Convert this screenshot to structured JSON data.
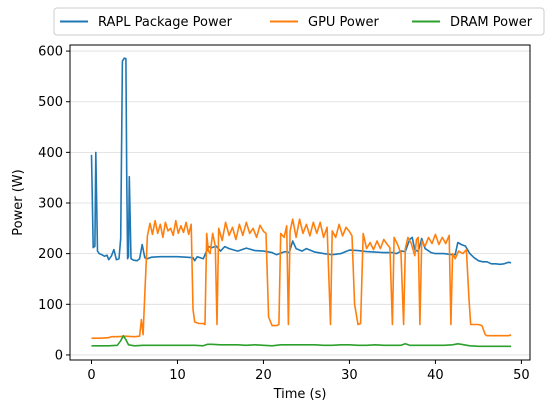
{
  "chart_data": {
    "type": "line",
    "xlabel": "Time (s)",
    "ylabel": "Power (W)",
    "xlim": [
      -2.5,
      51.0
    ],
    "ylim": [
      -10,
      612
    ],
    "xticks": [
      0,
      10,
      20,
      30,
      40,
      50
    ],
    "yticks": [
      0,
      100,
      200,
      300,
      400,
      500,
      600
    ],
    "grid": "horizontal",
    "legend": "top-center",
    "series": [
      {
        "name": "RAPL Package Power",
        "color": "#1f77b4",
        "points": [
          [
            0.0,
            395
          ],
          [
            0.2,
            212
          ],
          [
            0.4,
            215
          ],
          [
            0.5,
            400
          ],
          [
            0.7,
            205
          ],
          [
            0.9,
            200
          ],
          [
            1.2,
            198
          ],
          [
            1.5,
            195
          ],
          [
            1.8,
            197
          ],
          [
            2.0,
            188
          ],
          [
            2.3,
            195
          ],
          [
            2.6,
            208
          ],
          [
            2.9,
            188
          ],
          [
            3.2,
            190
          ],
          [
            3.4,
            230
          ],
          [
            3.6,
            580
          ],
          [
            3.8,
            586
          ],
          [
            4.0,
            585
          ],
          [
            4.1,
            360
          ],
          [
            4.2,
            190
          ],
          [
            4.3,
            195
          ],
          [
            4.4,
            352
          ],
          [
            4.6,
            190
          ],
          [
            4.9,
            187
          ],
          [
            5.3,
            186
          ],
          [
            5.6,
            190
          ],
          [
            5.9,
            218
          ],
          [
            6.2,
            192
          ],
          [
            6.5,
            190
          ],
          [
            6.8,
            192
          ],
          [
            7.0,
            193
          ],
          [
            8.0,
            194
          ],
          [
            9.0,
            194
          ],
          [
            10.0,
            194
          ],
          [
            11.0,
            193
          ],
          [
            11.8,
            192
          ],
          [
            12.0,
            186
          ],
          [
            12.3,
            194
          ],
          [
            13.0,
            190
          ],
          [
            13.6,
            214
          ],
          [
            14.0,
            212
          ],
          [
            14.5,
            215
          ],
          [
            15.0,
            205
          ],
          [
            15.5,
            214
          ],
          [
            16.0,
            210
          ],
          [
            17.0,
            205
          ],
          [
            18.0,
            211
          ],
          [
            19.0,
            206
          ],
          [
            20.0,
            205
          ],
          [
            21.0,
            202
          ],
          [
            21.5,
            198
          ],
          [
            22.0,
            201
          ],
          [
            22.5,
            204
          ],
          [
            23.0,
            202
          ],
          [
            23.4,
            225
          ],
          [
            23.8,
            210
          ],
          [
            24.5,
            205
          ],
          [
            25.0,
            210
          ],
          [
            26.0,
            203
          ],
          [
            27.0,
            200
          ],
          [
            28.0,
            198
          ],
          [
            29.0,
            200
          ],
          [
            30.0,
            207
          ],
          [
            31.0,
            206
          ],
          [
            32.0,
            204
          ],
          [
            33.0,
            203
          ],
          [
            34.0,
            202
          ],
          [
            35.0,
            202
          ],
          [
            35.5,
            200
          ],
          [
            36.0,
            205
          ],
          [
            36.5,
            204
          ],
          [
            37.0,
            228
          ],
          [
            37.3,
            232
          ],
          [
            37.6,
            208
          ],
          [
            38.0,
            204
          ],
          [
            38.4,
            230
          ],
          [
            38.8,
            210
          ],
          [
            39.5,
            202
          ],
          [
            40.0,
            200
          ],
          [
            40.5,
            200
          ],
          [
            41.0,
            200
          ],
          [
            41.5,
            199
          ],
          [
            42.0,
            198
          ],
          [
            42.3,
            198
          ],
          [
            42.6,
            222
          ],
          [
            43.0,
            218
          ],
          [
            43.5,
            215
          ],
          [
            44.0,
            200
          ],
          [
            44.5,
            192
          ],
          [
            45.0,
            186
          ],
          [
            45.5,
            184
          ],
          [
            46.0,
            184
          ],
          [
            46.5,
            180
          ],
          [
            47.0,
            180
          ],
          [
            47.5,
            179
          ],
          [
            48.0,
            180
          ],
          [
            48.5,
            183
          ],
          [
            48.8,
            182
          ]
        ]
      },
      {
        "name": "GPU Power",
        "color": "#ff7f0e",
        "points": [
          [
            0.0,
            33
          ],
          [
            1.0,
            33
          ],
          [
            2.0,
            34
          ],
          [
            2.3,
            36
          ],
          [
            3.0,
            36
          ],
          [
            4.0,
            37
          ],
          [
            5.0,
            36
          ],
          [
            5.6,
            37
          ],
          [
            5.8,
            70
          ],
          [
            6.0,
            40
          ],
          [
            6.2,
            120
          ],
          [
            6.5,
            235
          ],
          [
            6.8,
            260
          ],
          [
            7.1,
            238
          ],
          [
            7.4,
            265
          ],
          [
            7.7,
            240
          ],
          [
            8.0,
            258
          ],
          [
            8.3,
            232
          ],
          [
            8.6,
            262
          ],
          [
            8.9,
            245
          ],
          [
            9.2,
            250
          ],
          [
            9.5,
            236
          ],
          [
            9.8,
            265
          ],
          [
            10.1,
            240
          ],
          [
            10.4,
            255
          ],
          [
            10.7,
            242
          ],
          [
            11.0,
            262
          ],
          [
            11.3,
            238
          ],
          [
            11.6,
            258
          ],
          [
            11.8,
            90
          ],
          [
            12.0,
            65
          ],
          [
            12.5,
            62
          ],
          [
            13.0,
            62
          ],
          [
            13.2,
            60
          ],
          [
            13.4,
            240
          ],
          [
            13.6,
            205
          ],
          [
            13.8,
            200
          ],
          [
            14.1,
            240
          ],
          [
            14.4,
            215
          ],
          [
            14.6,
            60
          ],
          [
            14.8,
            250
          ],
          [
            15.2,
            226
          ],
          [
            15.6,
            262
          ],
          [
            16.0,
            236
          ],
          [
            16.4,
            252
          ],
          [
            16.8,
            228
          ],
          [
            17.2,
            258
          ],
          [
            17.6,
            236
          ],
          [
            18.0,
            262
          ],
          [
            18.4,
            240
          ],
          [
            18.8,
            250
          ],
          [
            19.2,
            232
          ],
          [
            19.6,
            256
          ],
          [
            20.0,
            244
          ],
          [
            20.3,
            240
          ],
          [
            20.6,
            75
          ],
          [
            21.0,
            58
          ],
          [
            21.5,
            58
          ],
          [
            21.8,
            60
          ],
          [
            22.0,
            240
          ],
          [
            22.4,
            232
          ],
          [
            22.7,
            255
          ],
          [
            22.9,
            60
          ],
          [
            23.1,
            245
          ],
          [
            23.4,
            268
          ],
          [
            23.8,
            232
          ],
          [
            24.2,
            268
          ],
          [
            24.6,
            240
          ],
          [
            25.0,
            258
          ],
          [
            25.4,
            235
          ],
          [
            25.8,
            262
          ],
          [
            26.2,
            240
          ],
          [
            26.6,
            262
          ],
          [
            27.0,
            232
          ],
          [
            27.4,
            252
          ],
          [
            27.8,
            60
          ],
          [
            28.0,
            245
          ],
          [
            28.4,
            232
          ],
          [
            28.8,
            258
          ],
          [
            29.2,
            235
          ],
          [
            29.6,
            252
          ],
          [
            30.0,
            244
          ],
          [
            30.3,
            235
          ],
          [
            30.6,
            100
          ],
          [
            31.0,
            60
          ],
          [
            31.3,
            62
          ],
          [
            31.6,
            240
          ],
          [
            32.0,
            210
          ],
          [
            32.4,
            222
          ],
          [
            32.8,
            208
          ],
          [
            33.2,
            225
          ],
          [
            33.6,
            210
          ],
          [
            34.0,
            228
          ],
          [
            34.4,
            218
          ],
          [
            34.7,
            212
          ],
          [
            35.0,
            60
          ],
          [
            35.2,
            232
          ],
          [
            35.6,
            218
          ],
          [
            36.0,
            200
          ],
          [
            36.3,
            60
          ],
          [
            36.5,
            210
          ],
          [
            36.8,
            232
          ],
          [
            37.2,
            220
          ],
          [
            37.6,
            196
          ],
          [
            37.8,
            228
          ],
          [
            38.0,
            232
          ],
          [
            38.2,
            60
          ],
          [
            38.4,
            225
          ],
          [
            38.8,
            215
          ],
          [
            39.2,
            232
          ],
          [
            39.6,
            220
          ],
          [
            40.0,
            238
          ],
          [
            40.4,
            218
          ],
          [
            40.8,
            232
          ],
          [
            41.2,
            220
          ],
          [
            41.6,
            236
          ],
          [
            41.8,
            60
          ],
          [
            42.0,
            200
          ],
          [
            42.3,
            190
          ],
          [
            42.7,
            205
          ],
          [
            43.2,
            200
          ],
          [
            43.6,
            208
          ],
          [
            43.9,
            110
          ],
          [
            44.1,
            60
          ],
          [
            45.0,
            60
          ],
          [
            45.4,
            58
          ],
          [
            45.8,
            40
          ],
          [
            46.0,
            38
          ],
          [
            47.0,
            38
          ],
          [
            48.0,
            38
          ],
          [
            48.5,
            38
          ],
          [
            48.8,
            40
          ]
        ]
      },
      {
        "name": "DRAM Power",
        "color": "#2ca02c",
        "points": [
          [
            0.0,
            18
          ],
          [
            1.0,
            18
          ],
          [
            2.0,
            18
          ],
          [
            3.0,
            19
          ],
          [
            3.4,
            28
          ],
          [
            3.7,
            38
          ],
          [
            4.0,
            30
          ],
          [
            4.3,
            20
          ],
          [
            5.0,
            18
          ],
          [
            6.0,
            19
          ],
          [
            7.0,
            19
          ],
          [
            8.0,
            19
          ],
          [
            9.0,
            19
          ],
          [
            10.0,
            19
          ],
          [
            11.0,
            19
          ],
          [
            12.0,
            19
          ],
          [
            13.0,
            18
          ],
          [
            13.5,
            21
          ],
          [
            14.0,
            21
          ],
          [
            15.0,
            20
          ],
          [
            16.0,
            20
          ],
          [
            17.0,
            20
          ],
          [
            18.0,
            19
          ],
          [
            19.0,
            20
          ],
          [
            20.0,
            19
          ],
          [
            21.0,
            18
          ],
          [
            22.0,
            20
          ],
          [
            23.0,
            20
          ],
          [
            24.0,
            20
          ],
          [
            25.0,
            20
          ],
          [
            26.0,
            20
          ],
          [
            27.0,
            19
          ],
          [
            28.0,
            19
          ],
          [
            29.0,
            20
          ],
          [
            30.0,
            20
          ],
          [
            31.0,
            19
          ],
          [
            32.0,
            19
          ],
          [
            33.0,
            20
          ],
          [
            34.0,
            19
          ],
          [
            35.0,
            19
          ],
          [
            36.0,
            19
          ],
          [
            36.5,
            22
          ],
          [
            37.0,
            19
          ],
          [
            38.0,
            19
          ],
          [
            39.0,
            19
          ],
          [
            40.0,
            19
          ],
          [
            41.0,
            19
          ],
          [
            42.0,
            20
          ],
          [
            42.6,
            22
          ],
          [
            43.0,
            21
          ],
          [
            44.0,
            18
          ],
          [
            45.0,
            17
          ],
          [
            46.0,
            17
          ],
          [
            47.0,
            17
          ],
          [
            48.0,
            17
          ],
          [
            48.8,
            17
          ]
        ]
      }
    ]
  }
}
